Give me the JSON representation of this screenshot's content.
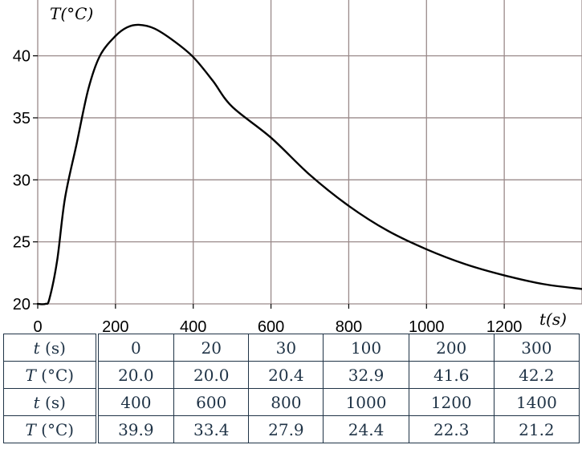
{
  "chart_data": {
    "type": "line",
    "x_axis_label": "t(s)",
    "y_axis_label": "T(°C)",
    "x_ticks": [
      0,
      200,
      400,
      600,
      800,
      1000,
      1200
    ],
    "y_ticks": [
      20,
      25,
      30,
      35,
      40
    ],
    "xlim": [
      0,
      1400
    ],
    "ylim": [
      20,
      44.5
    ],
    "grid": true,
    "x_grid": [
      0,
      200,
      400,
      600,
      800,
      1000,
      1200,
      1400
    ],
    "y_grid": [
      20,
      25,
      30,
      35,
      40
    ],
    "colors": {
      "grid": "#9a8a8a",
      "curve": "#000000",
      "table": "#1f3346"
    },
    "series": [
      {
        "x": [
          0,
          20,
          30,
          50,
          70,
          100,
          130,
          160,
          200,
          230,
          260,
          300,
          350,
          400,
          450,
          500,
          600,
          700,
          800,
          900,
          1000,
          1100,
          1200,
          1300,
          1400
        ],
        "y": [
          20.0,
          20.0,
          20.4,
          23.5,
          28.5,
          32.9,
          37.3,
          40.0,
          41.6,
          42.3,
          42.5,
          42.2,
          41.2,
          39.9,
          38.0,
          35.9,
          33.4,
          30.4,
          27.9,
          25.9,
          24.4,
          23.2,
          22.3,
          21.6,
          21.2
        ]
      }
    ]
  },
  "table": {
    "rows": [
      {
        "var": "t",
        "unit": " (s)",
        "values": [
          "0",
          "20",
          "30",
          "100",
          "200",
          "300"
        ]
      },
      {
        "var": "T",
        "unit": " (°C)",
        "values": [
          "20.0",
          "20.0",
          "20.4",
          "32.9",
          "41.6",
          "42.2"
        ]
      },
      {
        "var": "t",
        "unit": " (s)",
        "values": [
          "400",
          "600",
          "800",
          "1000",
          "1200",
          "1400"
        ]
      },
      {
        "var": "T",
        "unit": " (°C)",
        "values": [
          "39.9",
          "33.4",
          "27.9",
          "24.4",
          "22.3",
          "21.2"
        ]
      }
    ]
  }
}
